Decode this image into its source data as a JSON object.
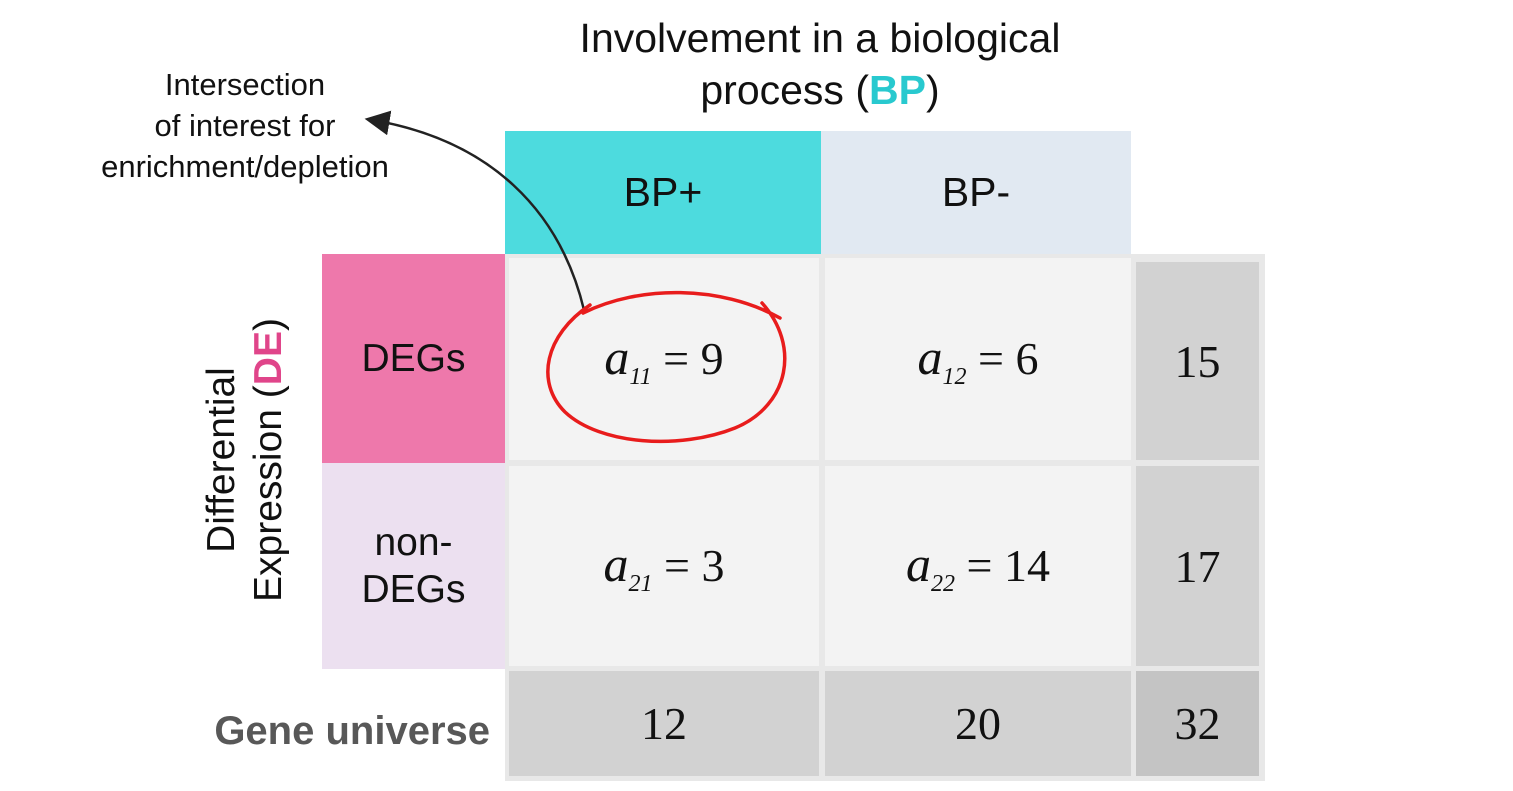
{
  "title": {
    "line1": "Involvement in a biological",
    "line2_prefix": "process (",
    "abbr": "BP",
    "line2_suffix": ")"
  },
  "annotation": {
    "line1": "Intersection",
    "line2": "of interest for",
    "line3": "enrichment/depletion"
  },
  "columns": [
    "BP+",
    "BP-"
  ],
  "rows": {
    "deg": "DEGs",
    "nondeg_line1": "non-",
    "nondeg_line2": "DEGs"
  },
  "row_axis": {
    "line1": "Differential",
    "line2_prefix": "Expression (",
    "abbr": "DE",
    "line2_suffix": ")"
  },
  "cells": {
    "a11": {
      "var": "a",
      "sub": "11",
      "value": "= 9"
    },
    "a12": {
      "var": "a",
      "sub": "12",
      "value": "= 6"
    },
    "a21": {
      "var": "a",
      "sub": "21",
      "value": "= 3"
    },
    "a22": {
      "var": "a",
      "sub": "22",
      "value": "= 14"
    }
  },
  "row_totals": [
    "15",
    "17"
  ],
  "col_totals": [
    "12",
    "20"
  ],
  "grand_total": "32",
  "universe_label": "Gene universe",
  "colors": {
    "bp_plus": "#4ddbde",
    "bp_minus": "#e1e9f2",
    "degs": "#ee78ab",
    "non_degs": "#ece0f0",
    "bp_text": "#28c9cf",
    "de_text": "#e0458a",
    "highlight_circle": "#e81c1c"
  }
}
